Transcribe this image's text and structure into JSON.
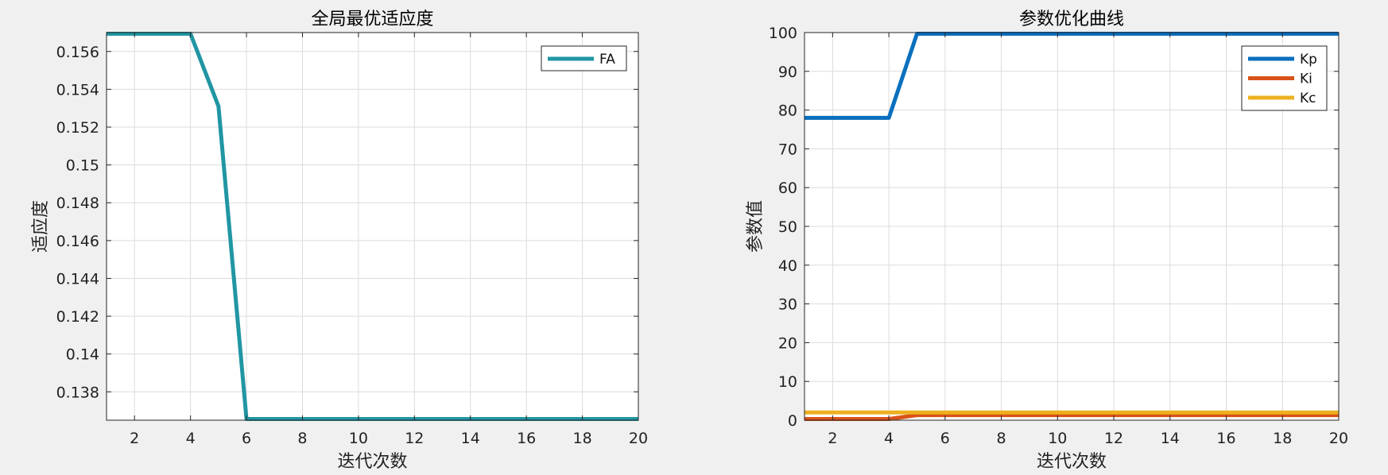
{
  "chart_data": [
    {
      "type": "line",
      "title": "全局最优适应度",
      "xlabel": "迭代次数",
      "ylabel": "适应度",
      "xlim": [
        1,
        20
      ],
      "ylim": [
        0.1365,
        0.157
      ],
      "xticks": [
        2,
        4,
        6,
        8,
        10,
        12,
        14,
        16,
        18,
        20
      ],
      "yticks": [
        0.138,
        0.14,
        0.142,
        0.144,
        0.146,
        0.148,
        0.15,
        0.152,
        0.154,
        0.156
      ],
      "ytick_labels": [
        "0.138",
        "0.14",
        "0.142",
        "0.144",
        "0.146",
        "0.148",
        "0.15",
        "0.152",
        "0.154",
        "0.156"
      ],
      "grid": true,
      "legend_position": "top-right",
      "x": [
        1,
        2,
        3,
        4,
        5,
        6,
        7,
        8,
        9,
        10,
        11,
        12,
        13,
        14,
        15,
        16,
        17,
        18,
        19,
        20
      ],
      "series": [
        {
          "name": "FA",
          "color": "#2196a3",
          "values": [
            0.157,
            0.157,
            0.157,
            0.157,
            0.1531,
            0.1365,
            0.1365,
            0.1365,
            0.1365,
            0.1365,
            0.1365,
            0.1365,
            0.1365,
            0.1365,
            0.1365,
            0.1365,
            0.1365,
            0.1365,
            0.1365,
            0.1365
          ]
        }
      ]
    },
    {
      "type": "line",
      "title": "参数优化曲线",
      "xlabel": "迭代次数",
      "ylabel": "参数值",
      "xlim": [
        1,
        20
      ],
      "ylim": [
        0,
        100
      ],
      "xticks": [
        2,
        4,
        6,
        8,
        10,
        12,
        14,
        16,
        18,
        20
      ],
      "yticks": [
        0,
        10,
        20,
        30,
        40,
        50,
        60,
        70,
        80,
        90,
        100
      ],
      "ytick_labels": [
        "0",
        "10",
        "20",
        "30",
        "40",
        "50",
        "60",
        "70",
        "80",
        "90",
        "100"
      ],
      "grid": true,
      "legend_position": "top-right",
      "x": [
        1,
        2,
        3,
        4,
        5,
        6,
        7,
        8,
        9,
        10,
        11,
        12,
        13,
        14,
        15,
        16,
        17,
        18,
        19,
        20
      ],
      "series": [
        {
          "name": "Kp",
          "color": "#0a6fbd",
          "values": [
            78,
            78,
            78,
            78,
            100,
            100,
            100,
            100,
            100,
            100,
            100,
            100,
            100,
            100,
            100,
            100,
            100,
            100,
            100,
            100
          ]
        },
        {
          "name": "Ki",
          "color": "#d95319",
          "values": [
            0.1,
            0.1,
            0.1,
            0.1,
            1.3,
            1.3,
            1.3,
            1.3,
            1.3,
            1.3,
            1.3,
            1.3,
            1.3,
            1.3,
            1.3,
            1.3,
            1.3,
            1.3,
            1.3,
            1.3
          ]
        },
        {
          "name": "Kc",
          "color": "#edb120",
          "values": [
            2,
            2,
            2,
            2,
            2,
            2,
            2,
            2,
            2,
            2,
            2,
            2,
            2,
            2,
            2,
            2,
            2,
            2,
            2,
            2
          ]
        }
      ]
    }
  ]
}
